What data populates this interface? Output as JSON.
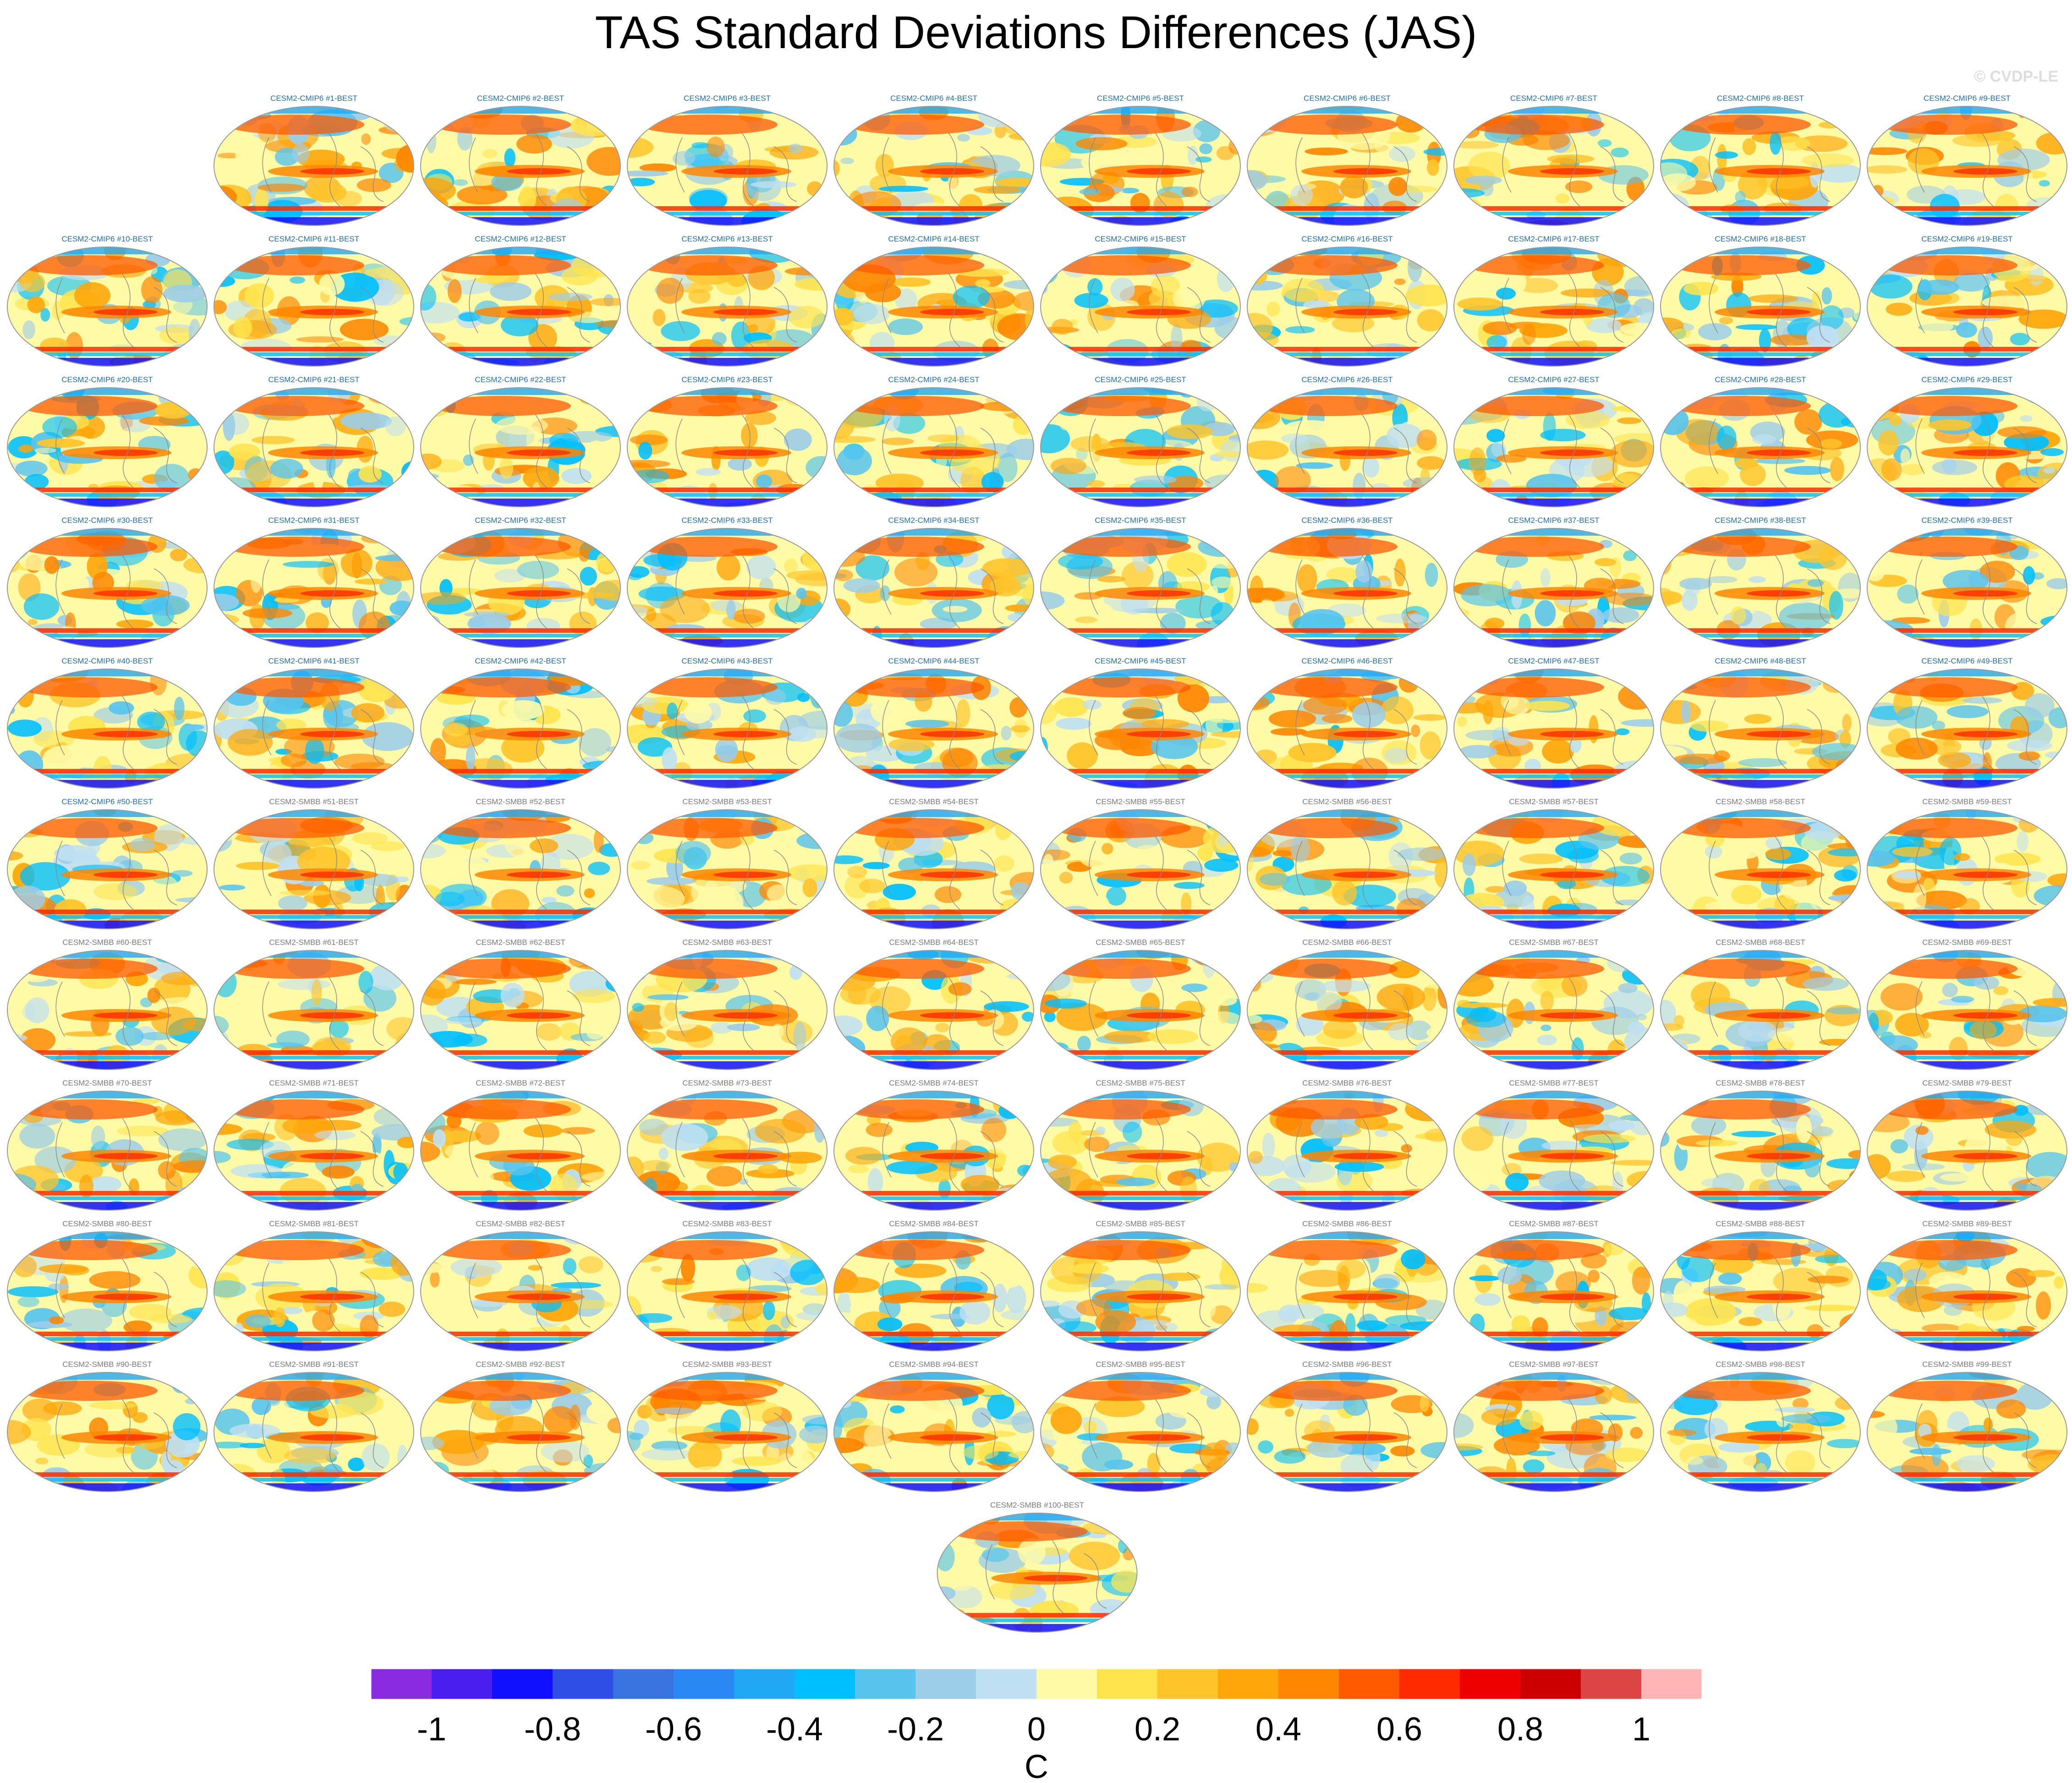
{
  "title": "TAS Standard Deviations Differences (JAS)",
  "watermark": "© CVDP-LE",
  "panel_titles": [
    "CESM2-CMIP6 #1-BEST",
    "CESM2-CMIP6 #2-BEST",
    "CESM2-CMIP6 #3-BEST",
    "CESM2-CMIP6 #4-BEST",
    "CESM2-CMIP6 #5-BEST",
    "CESM2-CMIP6 #6-BEST",
    "CESM2-CMIP6 #7-BEST",
    "CESM2-CMIP6 #8-BEST",
    "CESM2-CMIP6 #9-BEST",
    "CESM2-CMIP6 #10-BEST",
    "CESM2-CMIP6 #11-BEST",
    "CESM2-CMIP6 #12-BEST",
    "CESM2-CMIP6 #13-BEST",
    "CESM2-CMIP6 #14-BEST",
    "CESM2-CMIP6 #15-BEST",
    "CESM2-CMIP6 #16-BEST",
    "CESM2-CMIP6 #17-BEST",
    "CESM2-CMIP6 #18-BEST",
    "CESM2-CMIP6 #19-BEST",
    "CESM2-CMIP6 #20-BEST",
    "CESM2-CMIP6 #21-BEST",
    "CESM2-CMIP6 #22-BEST",
    "CESM2-CMIP6 #23-BEST",
    "CESM2-CMIP6 #24-BEST",
    "CESM2-CMIP6 #25-BEST",
    "CESM2-CMIP6 #26-BEST",
    "CESM2-CMIP6 #27-BEST",
    "CESM2-CMIP6 #28-BEST",
    "CESM2-CMIP6 #29-BEST",
    "CESM2-CMIP6 #30-BEST",
    "CESM2-CMIP6 #31-BEST",
    "CESM2-CMIP6 #32-BEST",
    "CESM2-CMIP6 #33-BEST",
    "CESM2-CMIP6 #34-BEST",
    "CESM2-CMIP6 #35-BEST",
    "CESM2-CMIP6 #36-BEST",
    "CESM2-CMIP6 #37-BEST",
    "CESM2-CMIP6 #38-BEST",
    "CESM2-CMIP6 #39-BEST",
    "CESM2-CMIP6 #40-BEST",
    "CESM2-CMIP6 #41-BEST",
    "CESM2-CMIP6 #42-BEST",
    "CESM2-CMIP6 #43-BEST",
    "CESM2-CMIP6 #44-BEST",
    "CESM2-CMIP6 #45-BEST",
    "CESM2-CMIP6 #46-BEST",
    "CESM2-CMIP6 #47-BEST",
    "CESM2-CMIP6 #48-BEST",
    "CESM2-CMIP6 #49-BEST",
    "CESM2-CMIP6 #50-BEST",
    "CESM2-SMBB #51-BEST",
    "CESM2-SMBB #52-BEST",
    "CESM2-SMBB #53-BEST",
    "CESM2-SMBB #54-BEST",
    "CESM2-SMBB #55-BEST",
    "CESM2-SMBB #56-BEST",
    "CESM2-SMBB #57-BEST",
    "CESM2-SMBB #58-BEST",
    "CESM2-SMBB #59-BEST",
    "CESM2-SMBB #60-BEST",
    "CESM2-SMBB #61-BEST",
    "CESM2-SMBB #62-BEST",
    "CESM2-SMBB #63-BEST",
    "CESM2-SMBB #64-BEST",
    "CESM2-SMBB #65-BEST",
    "CESM2-SMBB #66-BEST",
    "CESM2-SMBB #67-BEST",
    "CESM2-SMBB #68-BEST",
    "CESM2-SMBB #69-BEST",
    "CESM2-SMBB #70-BEST",
    "CESM2-SMBB #71-BEST",
    "CESM2-SMBB #72-BEST",
    "CESM2-SMBB #73-BEST",
    "CESM2-SMBB #74-BEST",
    "CESM2-SMBB #75-BEST",
    "CESM2-SMBB #76-BEST",
    "CESM2-SMBB #77-BEST",
    "CESM2-SMBB #78-BEST",
    "CESM2-SMBB #79-BEST",
    "CESM2-SMBB #80-BEST",
    "CESM2-SMBB #81-BEST",
    "CESM2-SMBB #82-BEST",
    "CESM2-SMBB #83-BEST",
    "CESM2-SMBB #84-BEST",
    "CESM2-SMBB #85-BEST",
    "CESM2-SMBB #86-BEST",
    "CESM2-SMBB #87-BEST",
    "CESM2-SMBB #88-BEST",
    "CESM2-SMBB #89-BEST",
    "CESM2-SMBB #90-BEST",
    "CESM2-SMBB #91-BEST",
    "CESM2-SMBB #92-BEST",
    "CESM2-SMBB #93-BEST",
    "CESM2-SMBB #94-BEST",
    "CESM2-SMBB #95-BEST",
    "CESM2-SMBB #96-BEST",
    "CESM2-SMBB #97-BEST",
    "CESM2-SMBB #98-BEST",
    "CESM2-SMBB #99-BEST",
    "CESM2-SMBB #100-BEST"
  ],
  "title_colors": {
    "CESM2-CMIP6": "#1e6fb0",
    "CESM2-SMBB": "#7a7a7a"
  },
  "colorbar": {
    "unit": "C",
    "tick_labels": [
      "-1",
      "-0.8",
      "-0.6",
      "-0.4",
      "-0.2",
      "0",
      "0.2",
      "0.4",
      "0.6",
      "0.8",
      "1"
    ],
    "colors": [
      "#8a2be2",
      "#4b1ef0",
      "#1010ff",
      "#2e4ee6",
      "#3a74e0",
      "#2a88f5",
      "#20a8f5",
      "#00bfff",
      "#58c4ee",
      "#9ccde9",
      "#bfe0f2",
      "#fffaa6",
      "#ffe44e",
      "#ffc42a",
      "#ffa60a",
      "#ff8600",
      "#ff5a00",
      "#ff2a00",
      "#ee0000",
      "#cc0000",
      "#dd4444",
      "#ffb5b5"
    ]
  }
}
